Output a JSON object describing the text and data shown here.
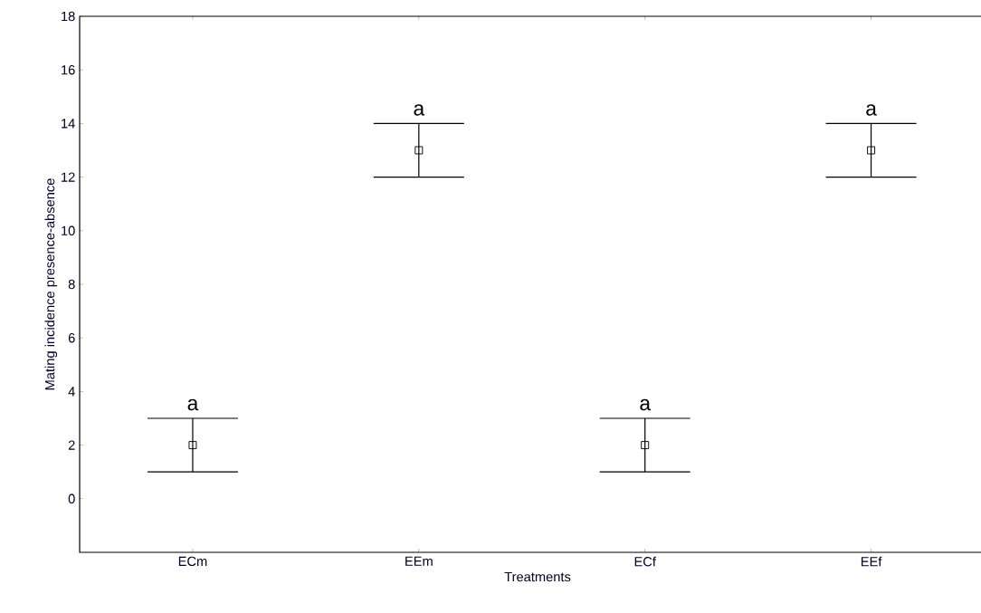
{
  "chart_data": {
    "type": "scatter",
    "xlabel": "Treatments",
    "ylabel": "Mating incidence presence-absence",
    "categories": [
      "ECm",
      "EEm",
      "ECf",
      "EEf"
    ],
    "values": [
      2,
      13,
      2,
      13
    ],
    "errors": [
      1,
      1,
      1,
      1
    ],
    "color": "#000000",
    "marker": "square",
    "ylim": [
      -2,
      18
    ],
    "yticks": [
      0,
      2,
      4,
      6,
      8,
      10,
      12,
      14,
      16,
      18
    ],
    "annotations": [
      "a",
      "a",
      "a",
      "a"
    ]
  }
}
